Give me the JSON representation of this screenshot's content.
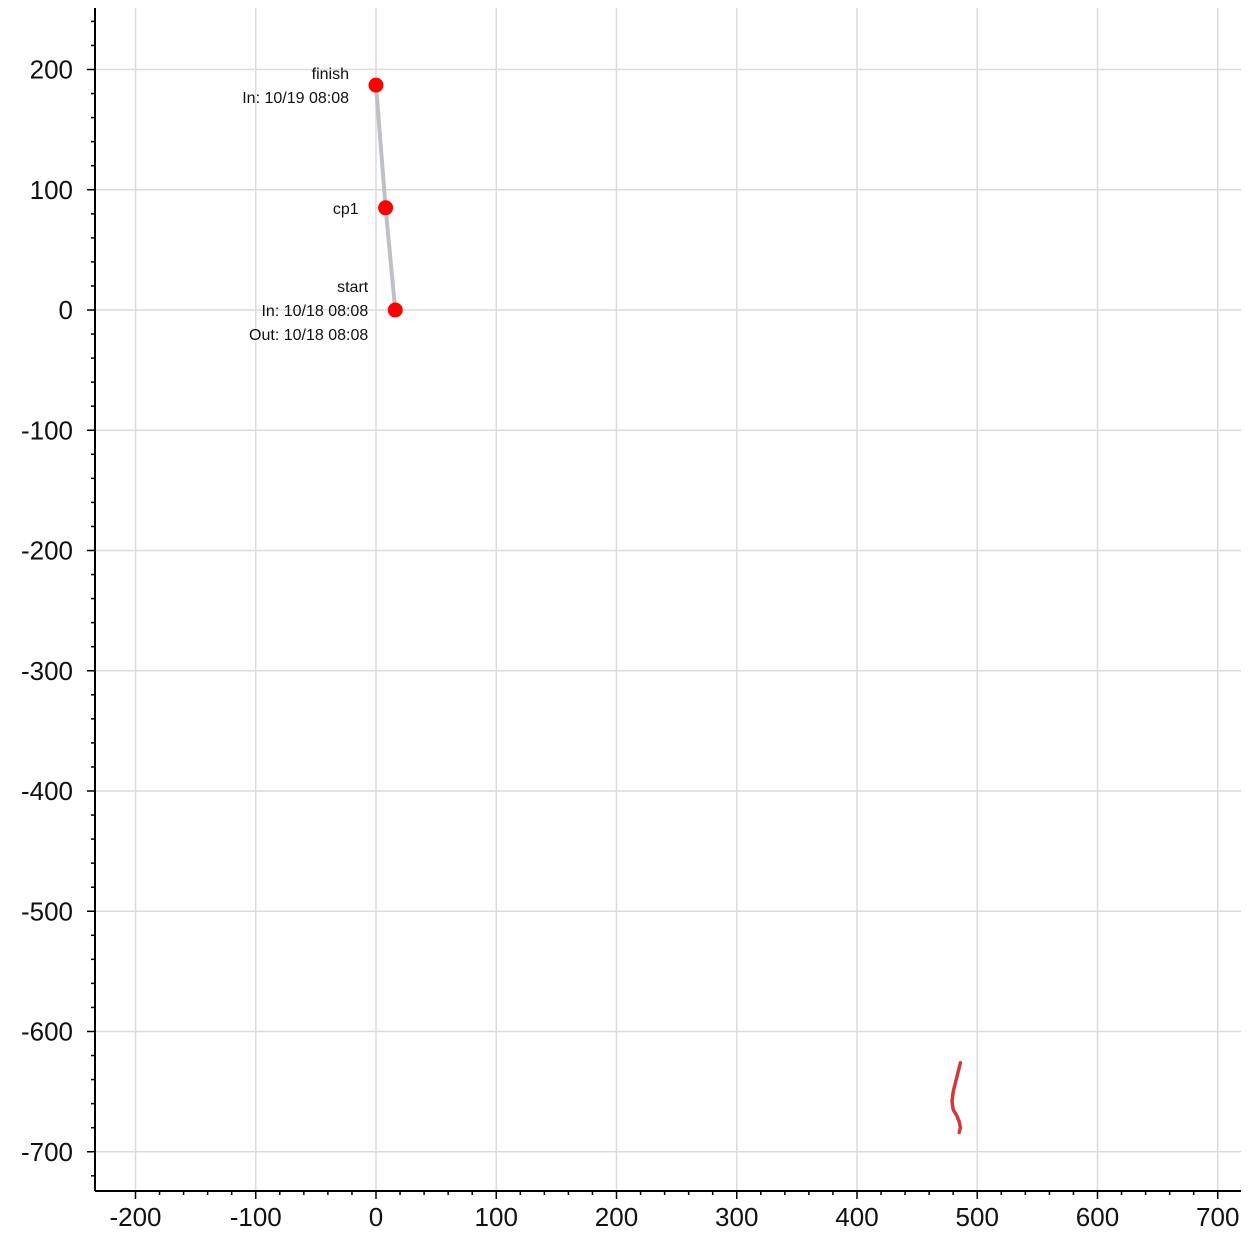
{
  "chart_data": {
    "type": "scatter",
    "title": "",
    "xlabel": "",
    "ylabel": "",
    "xlim": [
      -233,
      722
    ],
    "ylim": [
      -730,
      250
    ],
    "grid": true,
    "legend": "none",
    "x_ticks": [
      -200,
      -100,
      0,
      100,
      200,
      300,
      400,
      500,
      600,
      700
    ],
    "x_tick_labels": [
      "-200",
      "-100",
      "0",
      "100",
      "200",
      "300",
      "400",
      "500",
      "600",
      "700"
    ],
    "y_ticks": [
      200,
      100,
      0,
      -100,
      -200,
      -300,
      -400,
      -500,
      -600,
      -700
    ],
    "y_tick_labels": [
      "200",
      "100",
      "0",
      "-100",
      "-200",
      "-300",
      "-400",
      "-500",
      "-600",
      "-700"
    ],
    "route": {
      "color": "#bdc1c6",
      "x": [
        16,
        8,
        0
      ],
      "y": [
        0,
        85,
        187
      ]
    },
    "track": {
      "color": "#d23a3a",
      "x": [
        486,
        484,
        482,
        480,
        479,
        480,
        483,
        485,
        486,
        485
      ],
      "y": [
        -626,
        -634,
        -642,
        -650,
        -658,
        -665,
        -670,
        -675,
        -680,
        -684
      ]
    },
    "points": [
      {
        "name": "finish",
        "x": 0,
        "y": 187,
        "lines": [
          "finish",
          "In: 10/19 08:08"
        ]
      },
      {
        "name": "cp1",
        "x": 8,
        "y": 85,
        "lines": [
          "cp1"
        ]
      },
      {
        "name": "start",
        "x": 16,
        "y": 0,
        "lines": [
          "start",
          "In: 10/18 08:08",
          "Out: 10/18 08:08"
        ]
      }
    ],
    "point_color": "#ff0000"
  }
}
